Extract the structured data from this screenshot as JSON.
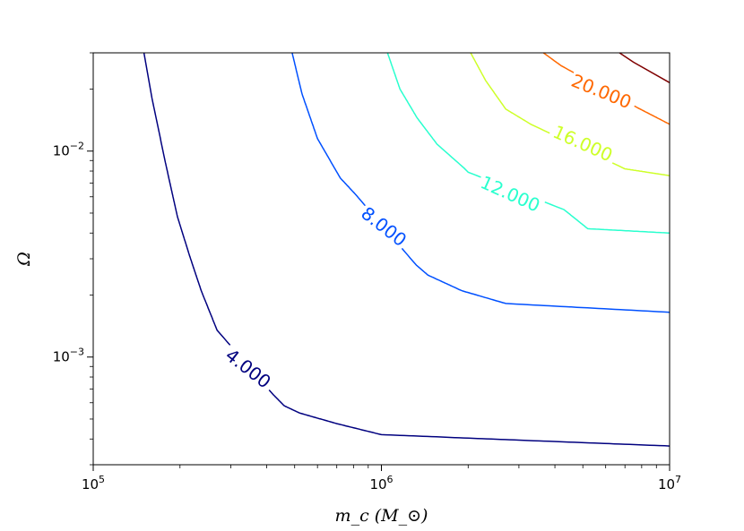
{
  "chart_data": {
    "type": "contour",
    "xlabel": "m_c (M_⊙)",
    "ylabel": "Ω",
    "x_scale": "log",
    "y_scale": "log",
    "xlim": [
      100000,
      10000000
    ],
    "ylim": [
      0.0003,
      0.03
    ],
    "grid": false,
    "x_major_ticks": [
      {
        "value": 100000,
        "base": "10",
        "exp": "5"
      },
      {
        "value": 1000000,
        "base": "10",
        "exp": "6"
      },
      {
        "value": 10000000,
        "base": "10",
        "exp": "7"
      }
    ],
    "y_major_ticks": [
      {
        "value": 0.001,
        "base": "10",
        "exp": "−3"
      },
      {
        "value": 0.01,
        "base": "10",
        "exp": "−2"
      }
    ],
    "contours": [
      {
        "level": 4,
        "label": "4.000",
        "color": "#00007f",
        "points": [
          [
            150000,
            0.03
          ],
          [
            160000,
            0.018
          ],
          [
            178000,
            0.0088
          ],
          [
            196000,
            0.0048
          ],
          [
            216000,
            0.0031
          ],
          [
            237000,
            0.0021
          ],
          [
            269000,
            0.00135
          ],
          [
            420000,
            0.00066
          ],
          [
            460000,
            0.00058
          ],
          [
            520000,
            0.000535
          ],
          [
            700000,
            0.000475
          ],
          [
            1000000,
            0.00042
          ],
          [
            3000000,
            0.000395
          ],
          [
            10000000,
            0.00037
          ]
        ],
        "label_at": [
          345000,
          0.00088
        ],
        "label_angle": 38
      },
      {
        "level": 8,
        "label": "8.000",
        "color": "#0050ff",
        "points": [
          [
            490000,
            0.03
          ],
          [
            530000,
            0.019
          ],
          [
            600000,
            0.0115
          ],
          [
            720000,
            0.0074
          ],
          [
            810000,
            0.0062
          ],
          [
            1320000,
            0.0028
          ],
          [
            1450000,
            0.0025
          ],
          [
            1900000,
            0.0021
          ],
          [
            2700000,
            0.00182
          ],
          [
            10000000,
            0.00165
          ]
        ],
        "label_at": [
          1020000,
          0.0043
        ],
        "label_angle": 38
      },
      {
        "level": 12,
        "label": "12.000",
        "color": "#29ffce",
        "points": [
          [
            1050000,
            0.03
          ],
          [
            1160000,
            0.02
          ],
          [
            1330000,
            0.0145
          ],
          [
            1560000,
            0.0108
          ],
          [
            1930000,
            0.0083
          ],
          [
            2000000,
            0.0079
          ],
          [
            4300000,
            0.0052
          ],
          [
            5200000,
            0.0042
          ],
          [
            10000000,
            0.004
          ]
        ],
        "label_at": [
          2800000,
          0.0062
        ],
        "label_angle": 24
      },
      {
        "level": 16,
        "label": "16.000",
        "color": "#ceff29",
        "points": [
          [
            2040000,
            0.03
          ],
          [
            2300000,
            0.022
          ],
          [
            2700000,
            0.016
          ],
          [
            3300000,
            0.0135
          ],
          [
            7000000,
            0.0082
          ],
          [
            10000000,
            0.0076
          ]
        ],
        "label_at": [
          5000000,
          0.0109
        ],
        "label_angle": 24
      },
      {
        "level": 20,
        "label": "20.000",
        "color": "#ff6800",
        "points": [
          [
            3650000,
            0.03
          ],
          [
            4200000,
            0.026
          ],
          [
            7700000,
            0.0163
          ],
          [
            10000000,
            0.0135
          ]
        ],
        "label_at": [
          5800000,
          0.0195
        ],
        "label_angle": 22
      },
      {
        "level": 24,
        "label": "",
        "color": "#7f0000",
        "points": [
          [
            6700000,
            0.03
          ],
          [
            7500000,
            0.027
          ],
          [
            10000000,
            0.0215
          ]
        ],
        "label_at": null,
        "label_angle": 0
      }
    ]
  }
}
